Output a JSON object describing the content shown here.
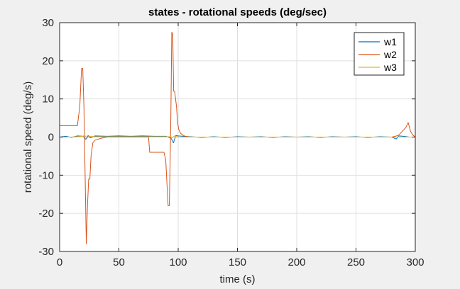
{
  "chart_data": {
    "type": "line",
    "title": "states - rotational speeds (deg/sec)",
    "xlabel": "time (s)",
    "ylabel": "rotational speed (deg/s)",
    "xlim": [
      0,
      300
    ],
    "ylim": [
      -30,
      30
    ],
    "xticks": [
      0,
      50,
      100,
      150,
      200,
      250,
      300
    ],
    "yticks": [
      -30,
      -20,
      -10,
      0,
      10,
      20,
      30
    ],
    "grid": true,
    "legend": "top-right",
    "series": [
      {
        "name": "w1",
        "color": "#0072BD",
        "x": [
          0,
          5,
          10,
          15,
          20,
          22,
          24,
          26,
          30,
          40,
          50,
          60,
          70,
          80,
          90,
          94,
          96,
          98,
          100,
          110,
          120,
          130,
          140,
          150,
          160,
          170,
          180,
          190,
          200,
          210,
          220,
          230,
          240,
          250,
          260,
          270,
          280,
          284,
          286,
          290,
          295,
          300
        ],
        "y": [
          0,
          0.2,
          -0.1,
          0.3,
          0.2,
          -0.6,
          0.4,
          -0.2,
          0.3,
          0.2,
          0.3,
          0.2,
          0.3,
          0.2,
          0.2,
          -0.3,
          -1.5,
          0.4,
          0.3,
          0.1,
          -0.1,
          0.1,
          -0.1,
          0.1,
          0,
          0.1,
          -0.1,
          0.1,
          0,
          0.1,
          -0.1,
          0.1,
          0,
          0.1,
          -0.1,
          0.1,
          0,
          -0.5,
          0.3,
          0.2,
          0,
          0
        ]
      },
      {
        "name": "w2",
        "color": "#D95319",
        "x": [
          0,
          10,
          15,
          17,
          18.5,
          19.5,
          20.5,
          21.5,
          22.5,
          23.5,
          24.5,
          25.5,
          26.5,
          28,
          30,
          35,
          40,
          50,
          60,
          70,
          75,
          76,
          80,
          85,
          88,
          89.5,
          90.5,
          91.5,
          92.5,
          93,
          93.8,
          94.6,
          95.4,
          96.2,
          97,
          97.8,
          98.6,
          99.4,
          100.5,
          102,
          104,
          106,
          110,
          120,
          130,
          140,
          150,
          160,
          170,
          180,
          190,
          200,
          210,
          220,
          230,
          240,
          250,
          260,
          270,
          280,
          283,
          286,
          289,
          292,
          294,
          296,
          298,
          300
        ],
        "y": [
          3,
          3,
          3,
          8,
          18,
          18,
          8,
          -10,
          -28,
          -18,
          -11,
          -11,
          -5,
          -1.5,
          -0.8,
          -0.3,
          0,
          0,
          0,
          0,
          0,
          -4,
          -4,
          -4,
          -4,
          -6,
          -12,
          -18,
          -18,
          -10,
          5,
          27.5,
          27,
          12,
          12,
          10,
          8,
          4,
          2,
          1,
          0.5,
          0.2,
          0,
          0,
          0,
          0,
          0,
          0,
          0,
          0,
          0,
          0,
          0,
          0,
          0,
          0,
          0,
          0,
          0,
          0,
          0.2,
          0.5,
          1.5,
          2.5,
          3.8,
          1.5,
          0.5,
          0
        ]
      },
      {
        "name": "w3",
        "color": "#EDB120",
        "x": [
          0,
          10,
          20,
          21,
          22,
          23,
          25,
          30,
          50,
          70,
          80,
          94,
          95,
          96,
          97,
          100,
          120,
          140,
          160,
          180,
          200,
          220,
          240,
          260,
          280,
          300
        ],
        "y": [
          0,
          0,
          0.2,
          0.6,
          0.1,
          -0.3,
          0.2,
          0.1,
          0.1,
          0.1,
          0.1,
          0.1,
          -0.2,
          0.1,
          0.3,
          0,
          0,
          0,
          0,
          0,
          0,
          0,
          0,
          0,
          0,
          0
        ]
      }
    ]
  }
}
